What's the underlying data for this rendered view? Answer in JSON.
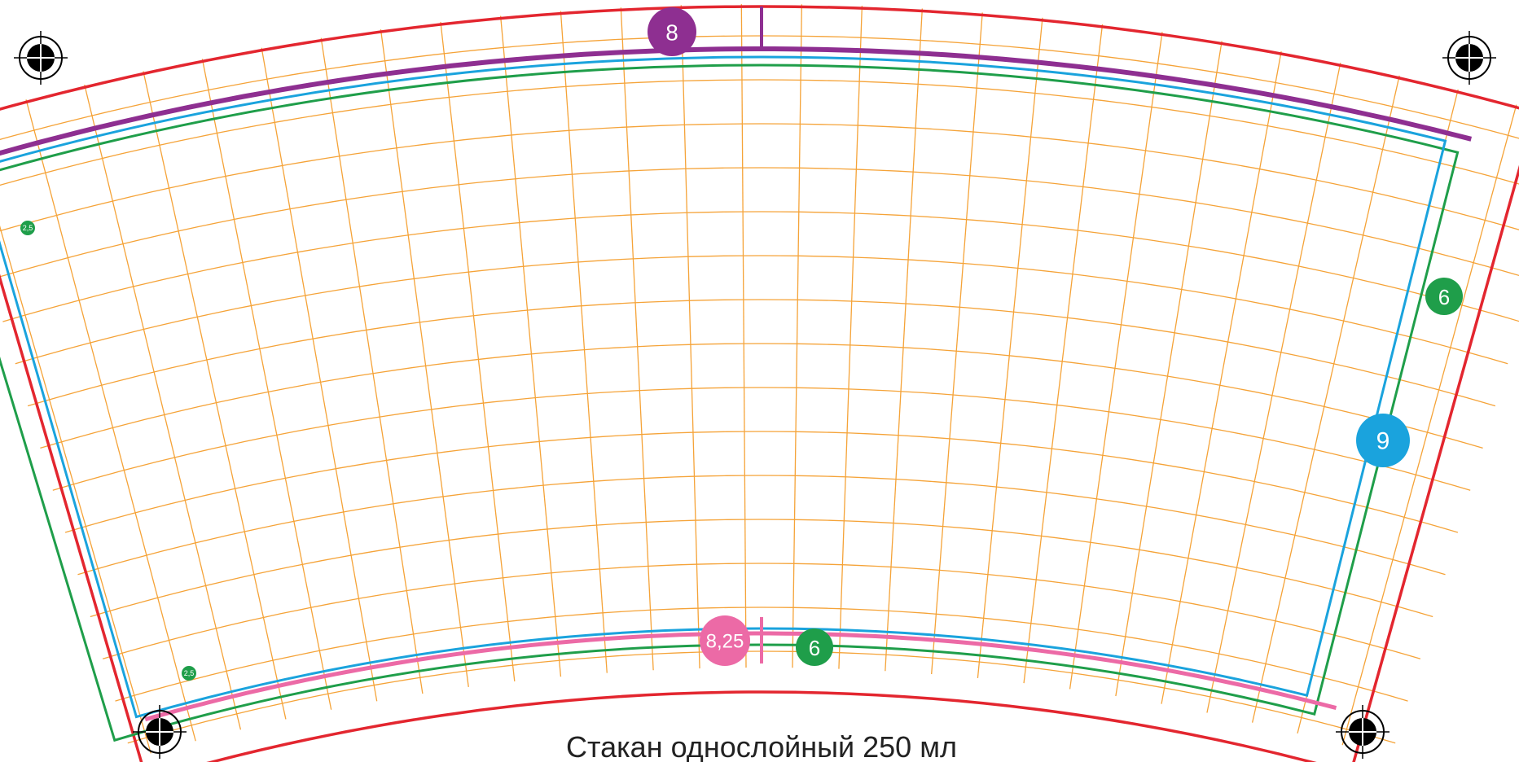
{
  "caption": "Стакан однослойный 250 мл",
  "colors": {
    "grid": "#f5a338",
    "outer": "#e3262f",
    "green": "#1f9e4a",
    "blue": "#1aa3dd",
    "purple": "#8e2f91",
    "pink": "#ec6aa6"
  },
  "badges": {
    "top_purple": "8",
    "right_green": "6",
    "right_blue": "9",
    "bottom_pink": "8,25",
    "bottom_green": "6",
    "left_green_top": "2,5",
    "left_green_bottom": "2,5"
  },
  "marks": {
    "registration_icon": "crosshair-icon",
    "count": 4
  }
}
